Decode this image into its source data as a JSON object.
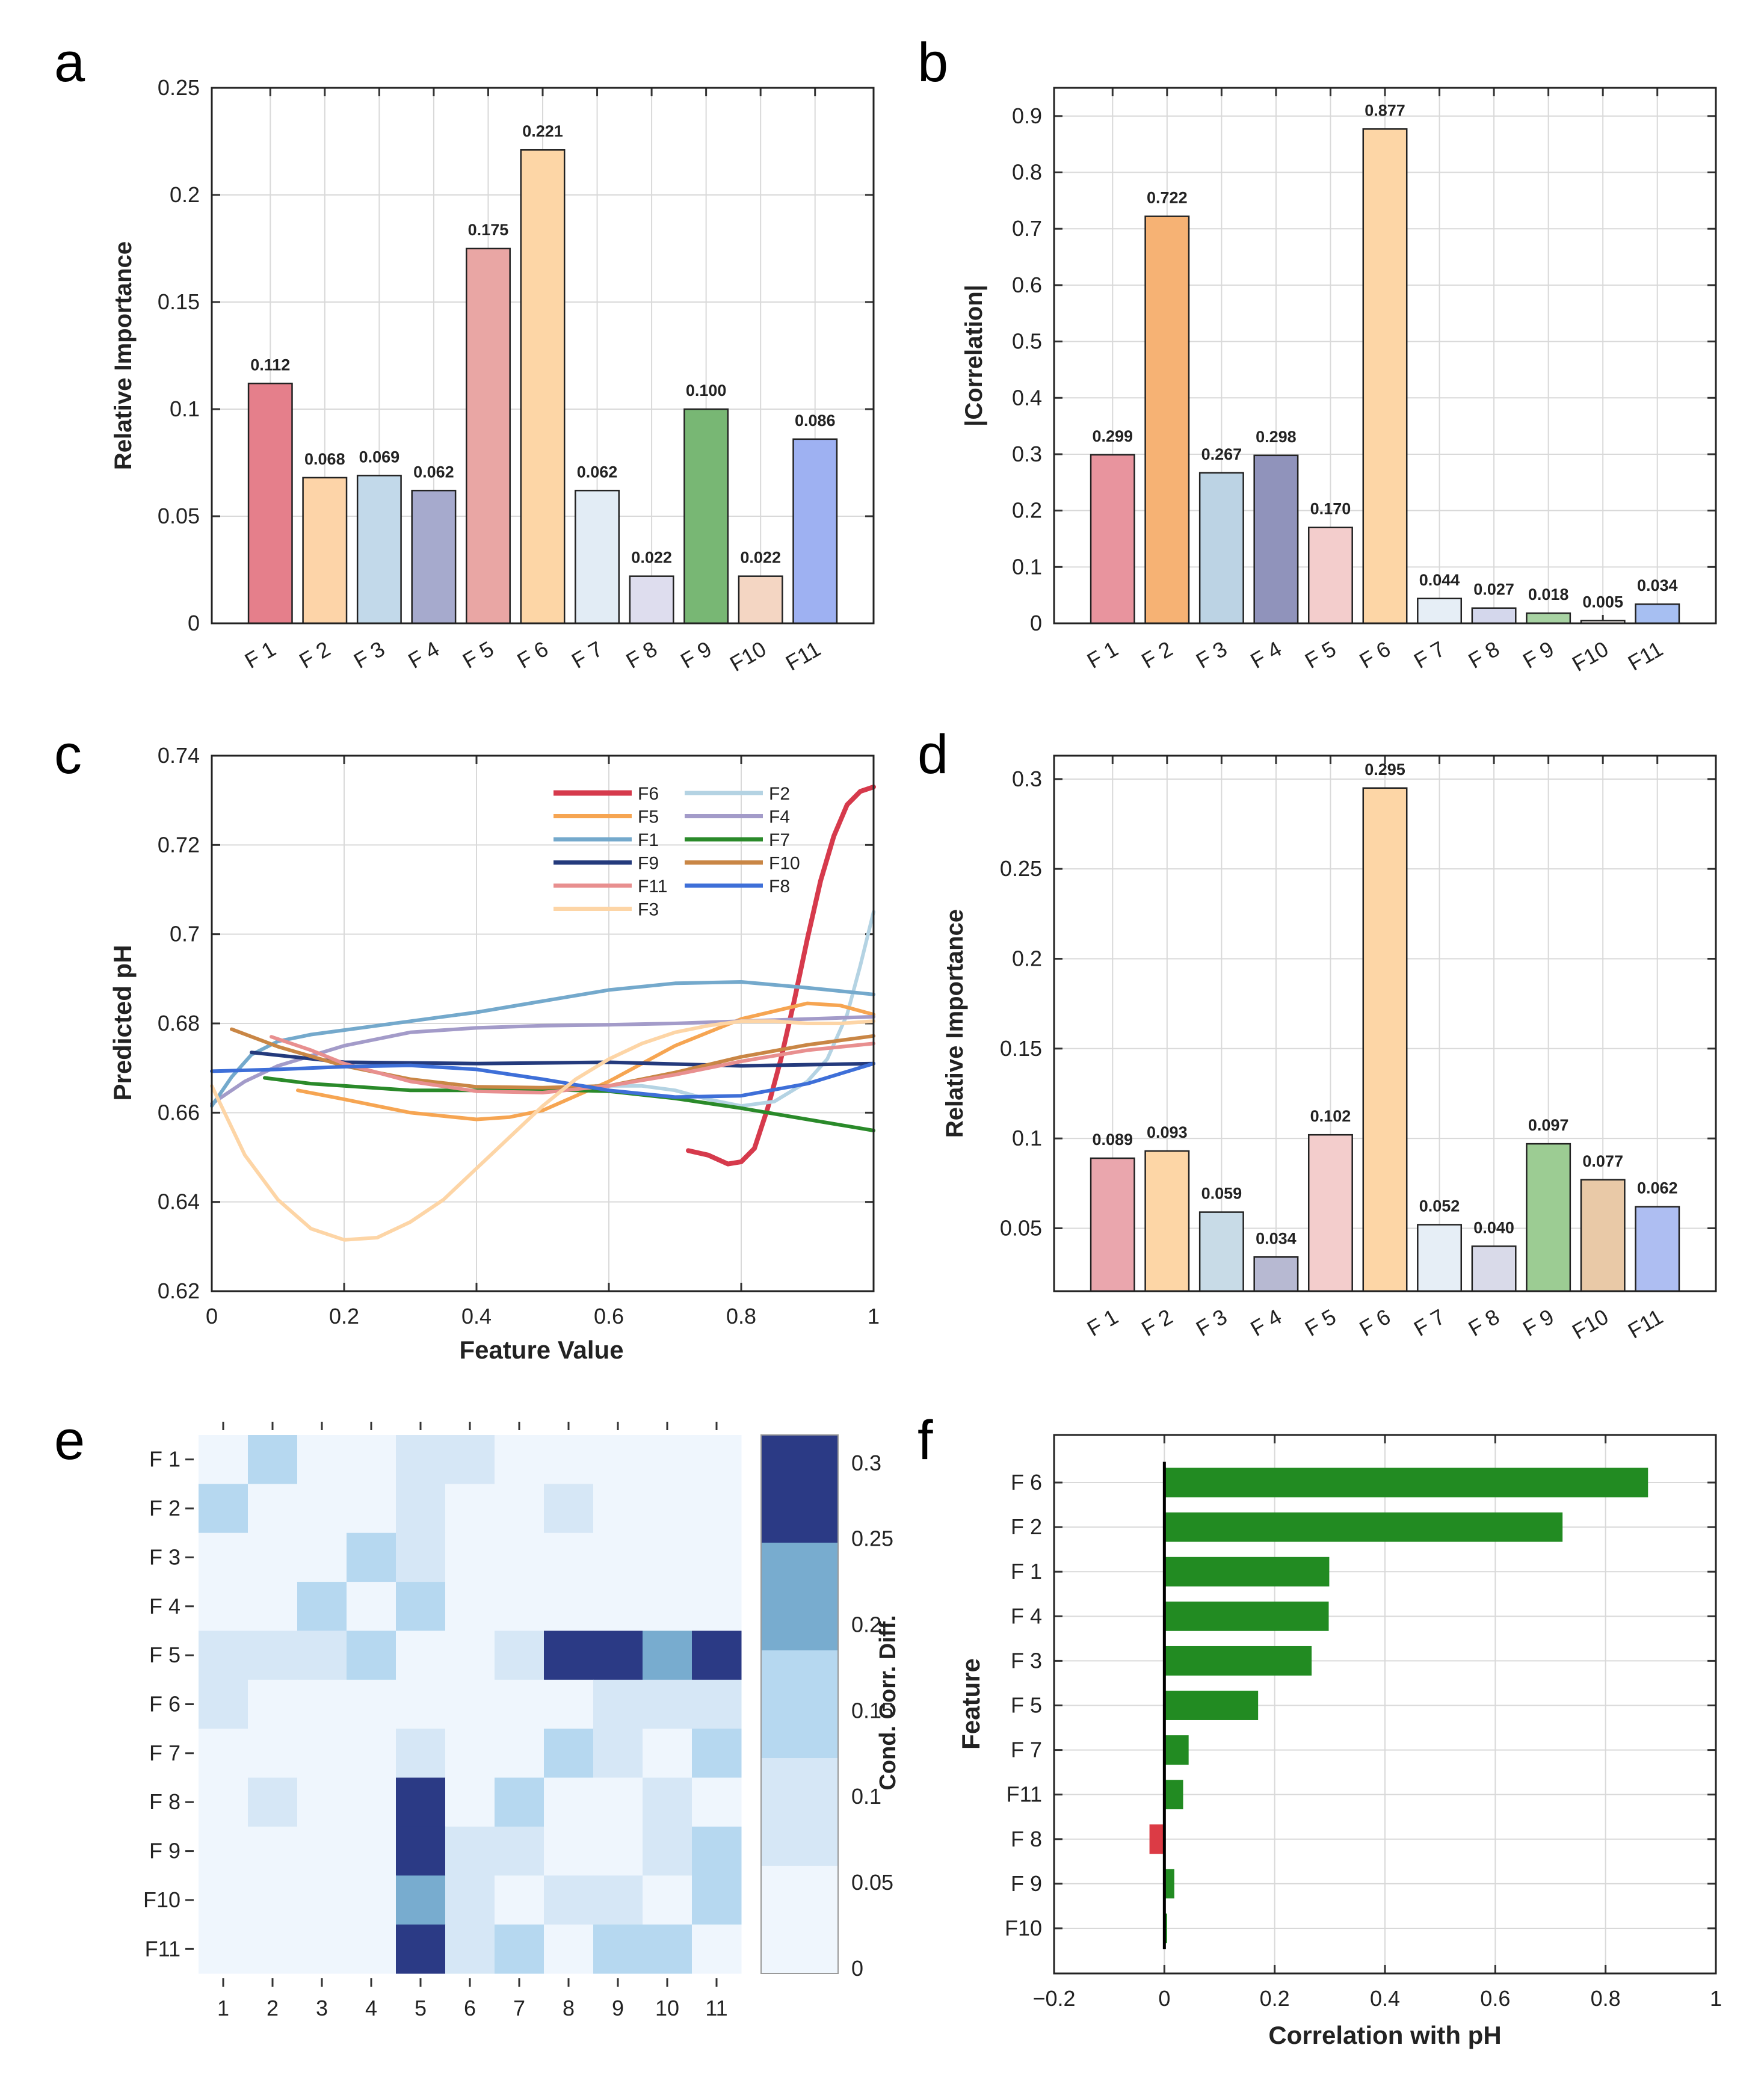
{
  "figure": {
    "panel_labels": [
      "a",
      "b",
      "c",
      "d",
      "e",
      "f"
    ],
    "colors": {
      "features": [
        "#e57f8b",
        "#fdd4a8",
        "#c2d9ea",
        "#a6aacd",
        "#e9a6a4",
        "#fdd6a6",
        "#e2ecf5",
        "#deddee",
        "#78b774",
        "#f4d6c3",
        "#9eb1f2"
      ],
      "b_features": [
        "#e8949e",
        "#f6b274",
        "#bcd3e4",
        "#9093bb",
        "#f3cdcc",
        "#fdd6a6",
        "#e6eef6",
        "#d4d7ec",
        "#a8d3a3",
        "#e7e2df",
        "#a7bff2"
      ],
      "d_features": [
        "#eaa6ad",
        "#fdd6a6",
        "#c8dbe7",
        "#b7b9d2",
        "#f3cdcc",
        "#fdd6a6",
        "#e6eef6",
        "#d9dae9",
        "#9ccc93",
        "#e9c9a7",
        "#aebef2"
      ],
      "grid": "#d9d9d9",
      "positive_bar": "#228b22",
      "negative_bar": "#dc3b45"
    }
  },
  "chart_data": [
    {
      "panel": "a",
      "type": "bar",
      "title": "",
      "xlabel": "",
      "ylabel": "Relative Importance",
      "categories": [
        "F 1",
        "F 2",
        "F 3",
        "F 4",
        "F 5",
        "F 6",
        "F 7",
        "F 8",
        "F 9",
        "F10",
        "F11"
      ],
      "values": [
        0.112,
        0.068,
        0.069,
        0.062,
        0.175,
        0.221,
        0.062,
        0.022,
        0.1,
        0.022,
        0.086
      ],
      "value_labels": [
        "0.112",
        "0.068",
        "0.069",
        "0.062",
        "0.175",
        "0.221",
        "0.062",
        "0.022",
        "0.100",
        "0.022",
        "0.086"
      ],
      "ylim": [
        0,
        0.25
      ],
      "yticks": [
        0,
        0.05,
        0.1,
        0.15,
        0.2,
        0.25
      ],
      "ytick_labels": [
        "0",
        "0.05",
        "0.1",
        "0.15",
        "0.2",
        "0.25"
      ],
      "grid": true
    },
    {
      "panel": "b",
      "type": "bar",
      "title": "",
      "xlabel": "",
      "ylabel": "|Correlation|",
      "categories": [
        "F 1",
        "F 2",
        "F 3",
        "F 4",
        "F 5",
        "F 6",
        "F 7",
        "F 8",
        "F 9",
        "F10",
        "F11"
      ],
      "values": [
        0.299,
        0.722,
        0.267,
        0.298,
        0.17,
        0.877,
        0.044,
        0.027,
        0.018,
        0.005,
        0.034
      ],
      "value_labels": [
        "0.299",
        "0.722",
        "0.267",
        "0.298",
        "0.170",
        "0.877",
        "0.044",
        "0.027",
        "0.018",
        "0.005",
        "0.034"
      ],
      "ylim": [
        0,
        0.95
      ],
      "yticks": [
        0,
        0.1,
        0.2,
        0.3,
        0.4,
        0.5,
        0.6,
        0.7,
        0.8,
        0.9
      ],
      "ytick_labels": [
        "0",
        "0.1",
        "0.2",
        "0.3",
        "0.4",
        "0.5",
        "0.6",
        "0.7",
        "0.8",
        "0.9"
      ],
      "grid": true
    },
    {
      "panel": "c",
      "type": "line",
      "title": "",
      "xlabel": "Feature Value",
      "ylabel": "Predicted pH",
      "xlim": [
        0,
        1
      ],
      "ylim": [
        0.62,
        0.74
      ],
      "xticks": [
        0,
        0.2,
        0.4,
        0.6,
        0.8,
        1
      ],
      "xtick_labels": [
        "0",
        "0.2",
        "0.4",
        "0.6",
        "0.8",
        "1"
      ],
      "yticks": [
        0.62,
        0.64,
        0.66,
        0.68,
        0.7,
        0.72,
        0.74
      ],
      "ytick_labels": [
        "0.62",
        "0.64",
        "0.66",
        "0.68",
        "0.7",
        "0.72",
        "0.74"
      ],
      "grid": true,
      "legend_position": "top-right",
      "series": [
        {
          "name": "F6",
          "color": "#d63a4c",
          "x": [
            0.72,
            0.75,
            0.78,
            0.8,
            0.82,
            0.84,
            0.86,
            0.88,
            0.9,
            0.92,
            0.94,
            0.96,
            0.98,
            1.0
          ],
          "y": [
            0.6515,
            0.6505,
            0.6485,
            0.649,
            0.652,
            0.661,
            0.672,
            0.685,
            0.699,
            0.712,
            0.722,
            0.729,
            0.732,
            0.733
          ]
        },
        {
          "name": "F2",
          "color": "#b4d3e3",
          "x": [
            0.58,
            0.65,
            0.7,
            0.75,
            0.8,
            0.85,
            0.9,
            0.93,
            0.96,
            0.98,
            1.0
          ],
          "y": [
            0.666,
            0.666,
            0.665,
            0.663,
            0.6615,
            0.6625,
            0.667,
            0.672,
            0.682,
            0.693,
            0.705
          ]
        },
        {
          "name": "F5",
          "color": "#f6a552",
          "x": [
            0.13,
            0.2,
            0.3,
            0.4,
            0.45,
            0.5,
            0.6,
            0.7,
            0.8,
            0.9,
            0.95,
            1.0
          ],
          "y": [
            0.665,
            0.663,
            0.66,
            0.6585,
            0.659,
            0.6605,
            0.667,
            0.675,
            0.681,
            0.6845,
            0.684,
            0.682
          ]
        },
        {
          "name": "F4",
          "color": "#a39bc9",
          "x": [
            0.0,
            0.05,
            0.1,
            0.2,
            0.3,
            0.4,
            0.5,
            0.6,
            0.7,
            0.8,
            0.9,
            1.0
          ],
          "y": [
            0.662,
            0.667,
            0.6705,
            0.675,
            0.678,
            0.679,
            0.6795,
            0.6797,
            0.68,
            0.6805,
            0.681,
            0.6815
          ]
        },
        {
          "name": "F1",
          "color": "#74a9cc",
          "x": [
            0.0,
            0.03,
            0.06,
            0.1,
            0.15,
            0.2,
            0.3,
            0.4,
            0.5,
            0.6,
            0.7,
            0.8,
            0.9,
            1.0
          ],
          "y": [
            0.6615,
            0.668,
            0.673,
            0.676,
            0.6775,
            0.6785,
            0.6805,
            0.6825,
            0.685,
            0.6875,
            0.689,
            0.6893,
            0.688,
            0.6865
          ]
        },
        {
          "name": "F7",
          "color": "#2a8a2a",
          "x": [
            0.08,
            0.15,
            0.2,
            0.3,
            0.4,
            0.5,
            0.6,
            0.7,
            0.8,
            0.9,
            1.0
          ],
          "y": [
            0.6678,
            0.6665,
            0.666,
            0.665,
            0.665,
            0.6652,
            0.6648,
            0.6632,
            0.661,
            0.6585,
            0.656
          ]
        },
        {
          "name": "F9",
          "color": "#243a7c",
          "x": [
            0.06,
            0.2,
            0.4,
            0.6,
            0.8,
            1.0
          ],
          "y": [
            0.6735,
            0.6713,
            0.671,
            0.6713,
            0.6705,
            0.671
          ]
        },
        {
          "name": "F10",
          "color": "#c98645",
          "x": [
            0.03,
            0.1,
            0.2,
            0.3,
            0.4,
            0.5,
            0.6,
            0.7,
            0.8,
            0.9,
            1.0
          ],
          "y": [
            0.6787,
            0.6748,
            0.6705,
            0.6675,
            0.6658,
            0.6656,
            0.666,
            0.669,
            0.6725,
            0.6752,
            0.6772
          ]
        },
        {
          "name": "F11",
          "color": "#e88f8f",
          "x": [
            0.09,
            0.15,
            0.2,
            0.3,
            0.4,
            0.5,
            0.6,
            0.7,
            0.8,
            0.9,
            1.0
          ],
          "y": [
            0.677,
            0.674,
            0.671,
            0.667,
            0.6648,
            0.6645,
            0.666,
            0.6685,
            0.6715,
            0.674,
            0.6755
          ]
        },
        {
          "name": "F8",
          "color": "#3e6fd8",
          "x": [
            0.0,
            0.1,
            0.2,
            0.3,
            0.4,
            0.5,
            0.6,
            0.7,
            0.8,
            0.9,
            1.0
          ],
          "y": [
            0.6693,
            0.6697,
            0.6703,
            0.6706,
            0.6697,
            0.6675,
            0.665,
            0.6635,
            0.6638,
            0.6665,
            0.671
          ]
        },
        {
          "name": "F3",
          "color": "#fdd5a6",
          "x": [
            0.0,
            0.05,
            0.1,
            0.15,
            0.2,
            0.25,
            0.3,
            0.35,
            0.4,
            0.45,
            0.5,
            0.55,
            0.6,
            0.65,
            0.7,
            0.75,
            0.8,
            0.85,
            0.9,
            0.95,
            1.0
          ],
          "y": [
            0.666,
            0.6505,
            0.6405,
            0.634,
            0.6315,
            0.632,
            0.6355,
            0.6405,
            0.6475,
            0.6545,
            0.6615,
            0.6675,
            0.672,
            0.6755,
            0.678,
            0.6795,
            0.6805,
            0.6805,
            0.68,
            0.68,
            0.6805
          ]
        }
      ]
    },
    {
      "panel": "d",
      "type": "bar",
      "title": "",
      "xlabel": "",
      "ylabel": "Relative Importance",
      "categories": [
        "F 1",
        "F 2",
        "F 3",
        "F 4",
        "F 5",
        "F 6",
        "F 7",
        "F 8",
        "F 9",
        "F10",
        "F11"
      ],
      "values": [
        0.089,
        0.093,
        0.059,
        0.034,
        0.102,
        0.295,
        0.052,
        0.04,
        0.097,
        0.077,
        0.062
      ],
      "value_labels": [
        "0.089",
        "0.093",
        "0.059",
        "0.034",
        "0.102",
        "0.295",
        "0.052",
        "0.040",
        "0.097",
        "0.077",
        "0.062"
      ],
      "ylim": [
        0.015,
        0.313
      ],
      "yticks": [
        0.05,
        0.1,
        0.15,
        0.2,
        0.25,
        0.3
      ],
      "ytick_labels": [
        "0.05",
        "0.1",
        "0.15",
        "0.2",
        "0.25",
        "0.3"
      ],
      "grid": true
    },
    {
      "panel": "e",
      "type": "heatmap",
      "title": "",
      "xlabel": "",
      "ylabel": "",
      "x_categories": [
        "1",
        "2",
        "3",
        "4",
        "5",
        "6",
        "7",
        "8",
        "9",
        "10",
        "11"
      ],
      "y_categories": [
        "F 1",
        "F 2",
        "F 3",
        "F 4",
        "F 5",
        "F 6",
        "F 7",
        "F 8",
        "F 9",
        "F10",
        "F11"
      ],
      "values": [
        [
          0,
          0.15,
          0,
          0,
          0.1,
          0.1,
          0,
          0,
          0,
          0,
          0
        ],
        [
          0.15,
          0,
          0,
          0,
          0.1,
          0,
          0,
          0.1,
          0,
          0,
          0
        ],
        [
          0,
          0,
          0,
          0.15,
          0.1,
          0,
          0,
          0,
          0,
          0,
          0
        ],
        [
          0,
          0,
          0.15,
          0,
          0.15,
          0,
          0,
          0,
          0,
          0,
          0
        ],
        [
          0.1,
          0.1,
          0.1,
          0.15,
          0,
          0,
          0.1,
          0.3,
          0.3,
          0.2,
          0.3
        ],
        [
          0.1,
          0,
          0,
          0,
          0,
          0,
          0,
          0,
          0.1,
          0.1,
          0.1
        ],
        [
          0,
          0,
          0,
          0,
          0.1,
          0,
          0,
          0.15,
          0.1,
          0,
          0.15
        ],
        [
          0,
          0.1,
          0,
          0,
          0.3,
          0,
          0.15,
          0,
          0,
          0.1,
          0
        ],
        [
          0,
          0,
          0,
          0,
          0.3,
          0.1,
          0.1,
          0,
          0,
          0.1,
          0.15
        ],
        [
          0,
          0,
          0,
          0,
          0.2,
          0.1,
          0,
          0.1,
          0.1,
          0,
          0.15
        ],
        [
          0,
          0,
          0,
          0,
          0.3,
          0.1,
          0.15,
          0,
          0.15,
          0.15,
          0
        ]
      ],
      "colorbar": {
        "label": "Cond. Corr. Diff.",
        "range": [
          0,
          0.3
        ],
        "ticks": [
          0,
          0.05,
          0.1,
          0.15,
          0.2,
          0.25,
          0.3
        ],
        "tick_labels": [
          "0",
          "0.05",
          "0.1",
          "0.15",
          "0.2",
          "0.25",
          "0.3"
        ],
        "colors": [
          "#eff6fd",
          "#d6e7f6",
          "#b6d8f0",
          "#78accf",
          "#2b3a85"
        ]
      }
    },
    {
      "panel": "f",
      "type": "bar",
      "orientation": "horizontal",
      "title": "",
      "xlabel": "Correlation with pH",
      "ylabel": "Feature",
      "categories": [
        "F 6",
        "F 2",
        "F 1",
        "F 4",
        "F 3",
        "F 5",
        "F 7",
        "F11",
        "F 8",
        "F 9",
        "F10"
      ],
      "values": [
        0.877,
        0.722,
        0.299,
        0.298,
        0.267,
        0.17,
        0.044,
        0.034,
        -0.027,
        0.018,
        0.005
      ],
      "xlim": [
        -0.2,
        1
      ],
      "xticks": [
        -0.2,
        0,
        0.2,
        0.4,
        0.6,
        0.8,
        1
      ],
      "xtick_labels": [
        "−0.2",
        "0",
        "0.2",
        "0.4",
        "0.6",
        "0.8",
        "1"
      ],
      "grid": true
    }
  ]
}
